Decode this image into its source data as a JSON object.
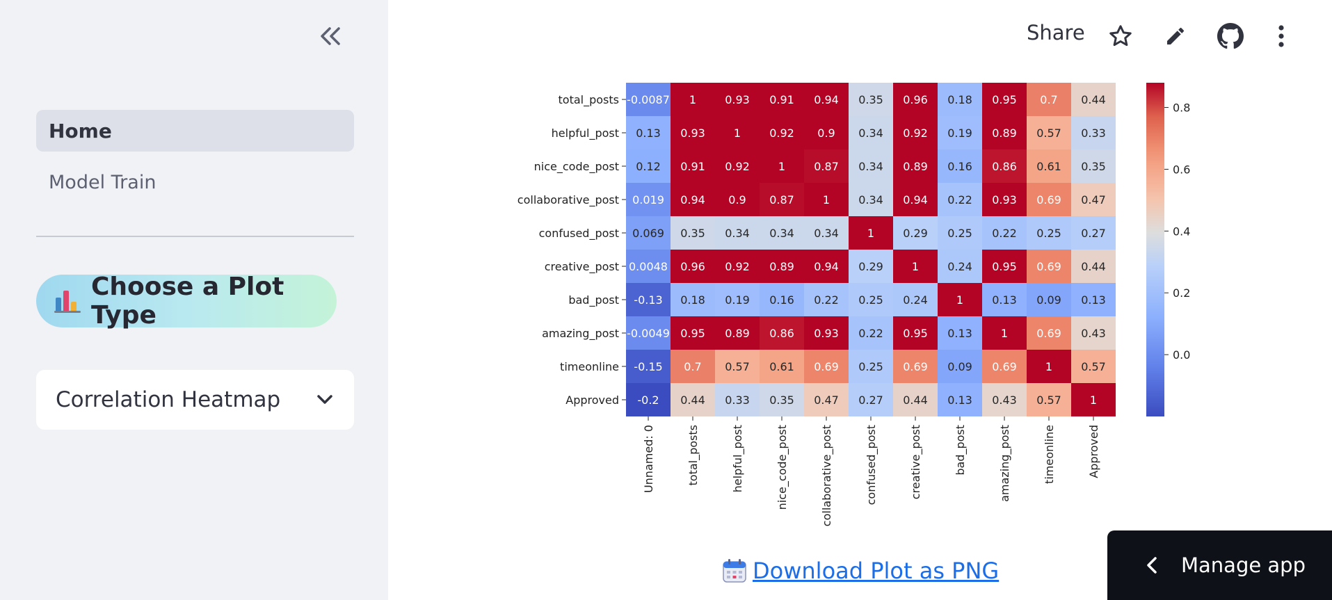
{
  "sidebar": {
    "collapse_icon": "double-chevron-left-icon",
    "nav": [
      {
        "label": "Home",
        "active": true
      },
      {
        "label": "Model Train",
        "active": false
      }
    ],
    "plot_type_heading": "📊 Choose a Plot Type",
    "plot_type_heading_text": "Choose a Plot Type",
    "plot_select_value": "Correlation Heatmap"
  },
  "toolbar": {
    "share_label": "Share",
    "icons": [
      "star-icon",
      "edit-pencil-icon",
      "github-icon",
      "more-vert-icon"
    ]
  },
  "main": {
    "download_label": "Download Plot as PNG"
  },
  "manage_app": {
    "label": "Manage app"
  },
  "colors": {
    "sidebar_bg": "#f0f2f6",
    "link": "#1c6ee8",
    "manage_bg": "#0e1117"
  },
  "chart_data": {
    "type": "heatmap",
    "colormap": "coolwarm",
    "rows": [
      "total_posts",
      "helpful_post",
      "nice_code_post",
      "collaborative_post",
      "confused_post",
      "creative_post",
      "bad_post",
      "amazing_post",
      "timeonline",
      "Approved"
    ],
    "columns": [
      "Unnamed: 0",
      "total_posts",
      "helpful_post",
      "nice_code_post",
      "collaborative_post",
      "confused_post",
      "creative_post",
      "bad_post",
      "amazing_post",
      "timeonline",
      "Approved"
    ],
    "values": [
      [
        -0.0087,
        1,
        0.93,
        0.91,
        0.94,
        0.35,
        0.96,
        0.18,
        0.95,
        0.7,
        0.44
      ],
      [
        0.13,
        0.93,
        1,
        0.92,
        0.9,
        0.34,
        0.92,
        0.19,
        0.89,
        0.57,
        0.33
      ],
      [
        0.12,
        0.91,
        0.92,
        1,
        0.87,
        0.34,
        0.89,
        0.16,
        0.86,
        0.61,
        0.35
      ],
      [
        0.019,
        0.94,
        0.9,
        0.87,
        1,
        0.34,
        0.94,
        0.22,
        0.93,
        0.69,
        0.47
      ],
      [
        0.069,
        0.35,
        0.34,
        0.34,
        0.34,
        1,
        0.29,
        0.25,
        0.22,
        0.25,
        0.27
      ],
      [
        0.0048,
        0.96,
        0.92,
        0.89,
        0.94,
        0.29,
        1,
        0.24,
        0.95,
        0.69,
        0.44
      ],
      [
        -0.13,
        0.18,
        0.19,
        0.16,
        0.22,
        0.25,
        0.24,
        1,
        0.13,
        0.09,
        0.13
      ],
      [
        -0.0049,
        0.95,
        0.89,
        0.86,
        0.93,
        0.22,
        0.95,
        0.13,
        1,
        0.69,
        0.43
      ],
      [
        -0.15,
        0.7,
        0.57,
        0.61,
        0.69,
        0.25,
        0.69,
        0.09,
        0.69,
        1,
        0.57
      ],
      [
        -0.2,
        0.44,
        0.33,
        0.35,
        0.47,
        0.27,
        0.44,
        0.13,
        0.43,
        0.57,
        1
      ]
    ],
    "colorbar": {
      "vmin": -0.2,
      "vmax": 0.88,
      "ticks": [
        0.0,
        0.2,
        0.4,
        0.6,
        0.8
      ],
      "tick_labels": [
        "0.0",
        "0.2",
        "0.4",
        "0.6",
        "0.8"
      ]
    }
  }
}
